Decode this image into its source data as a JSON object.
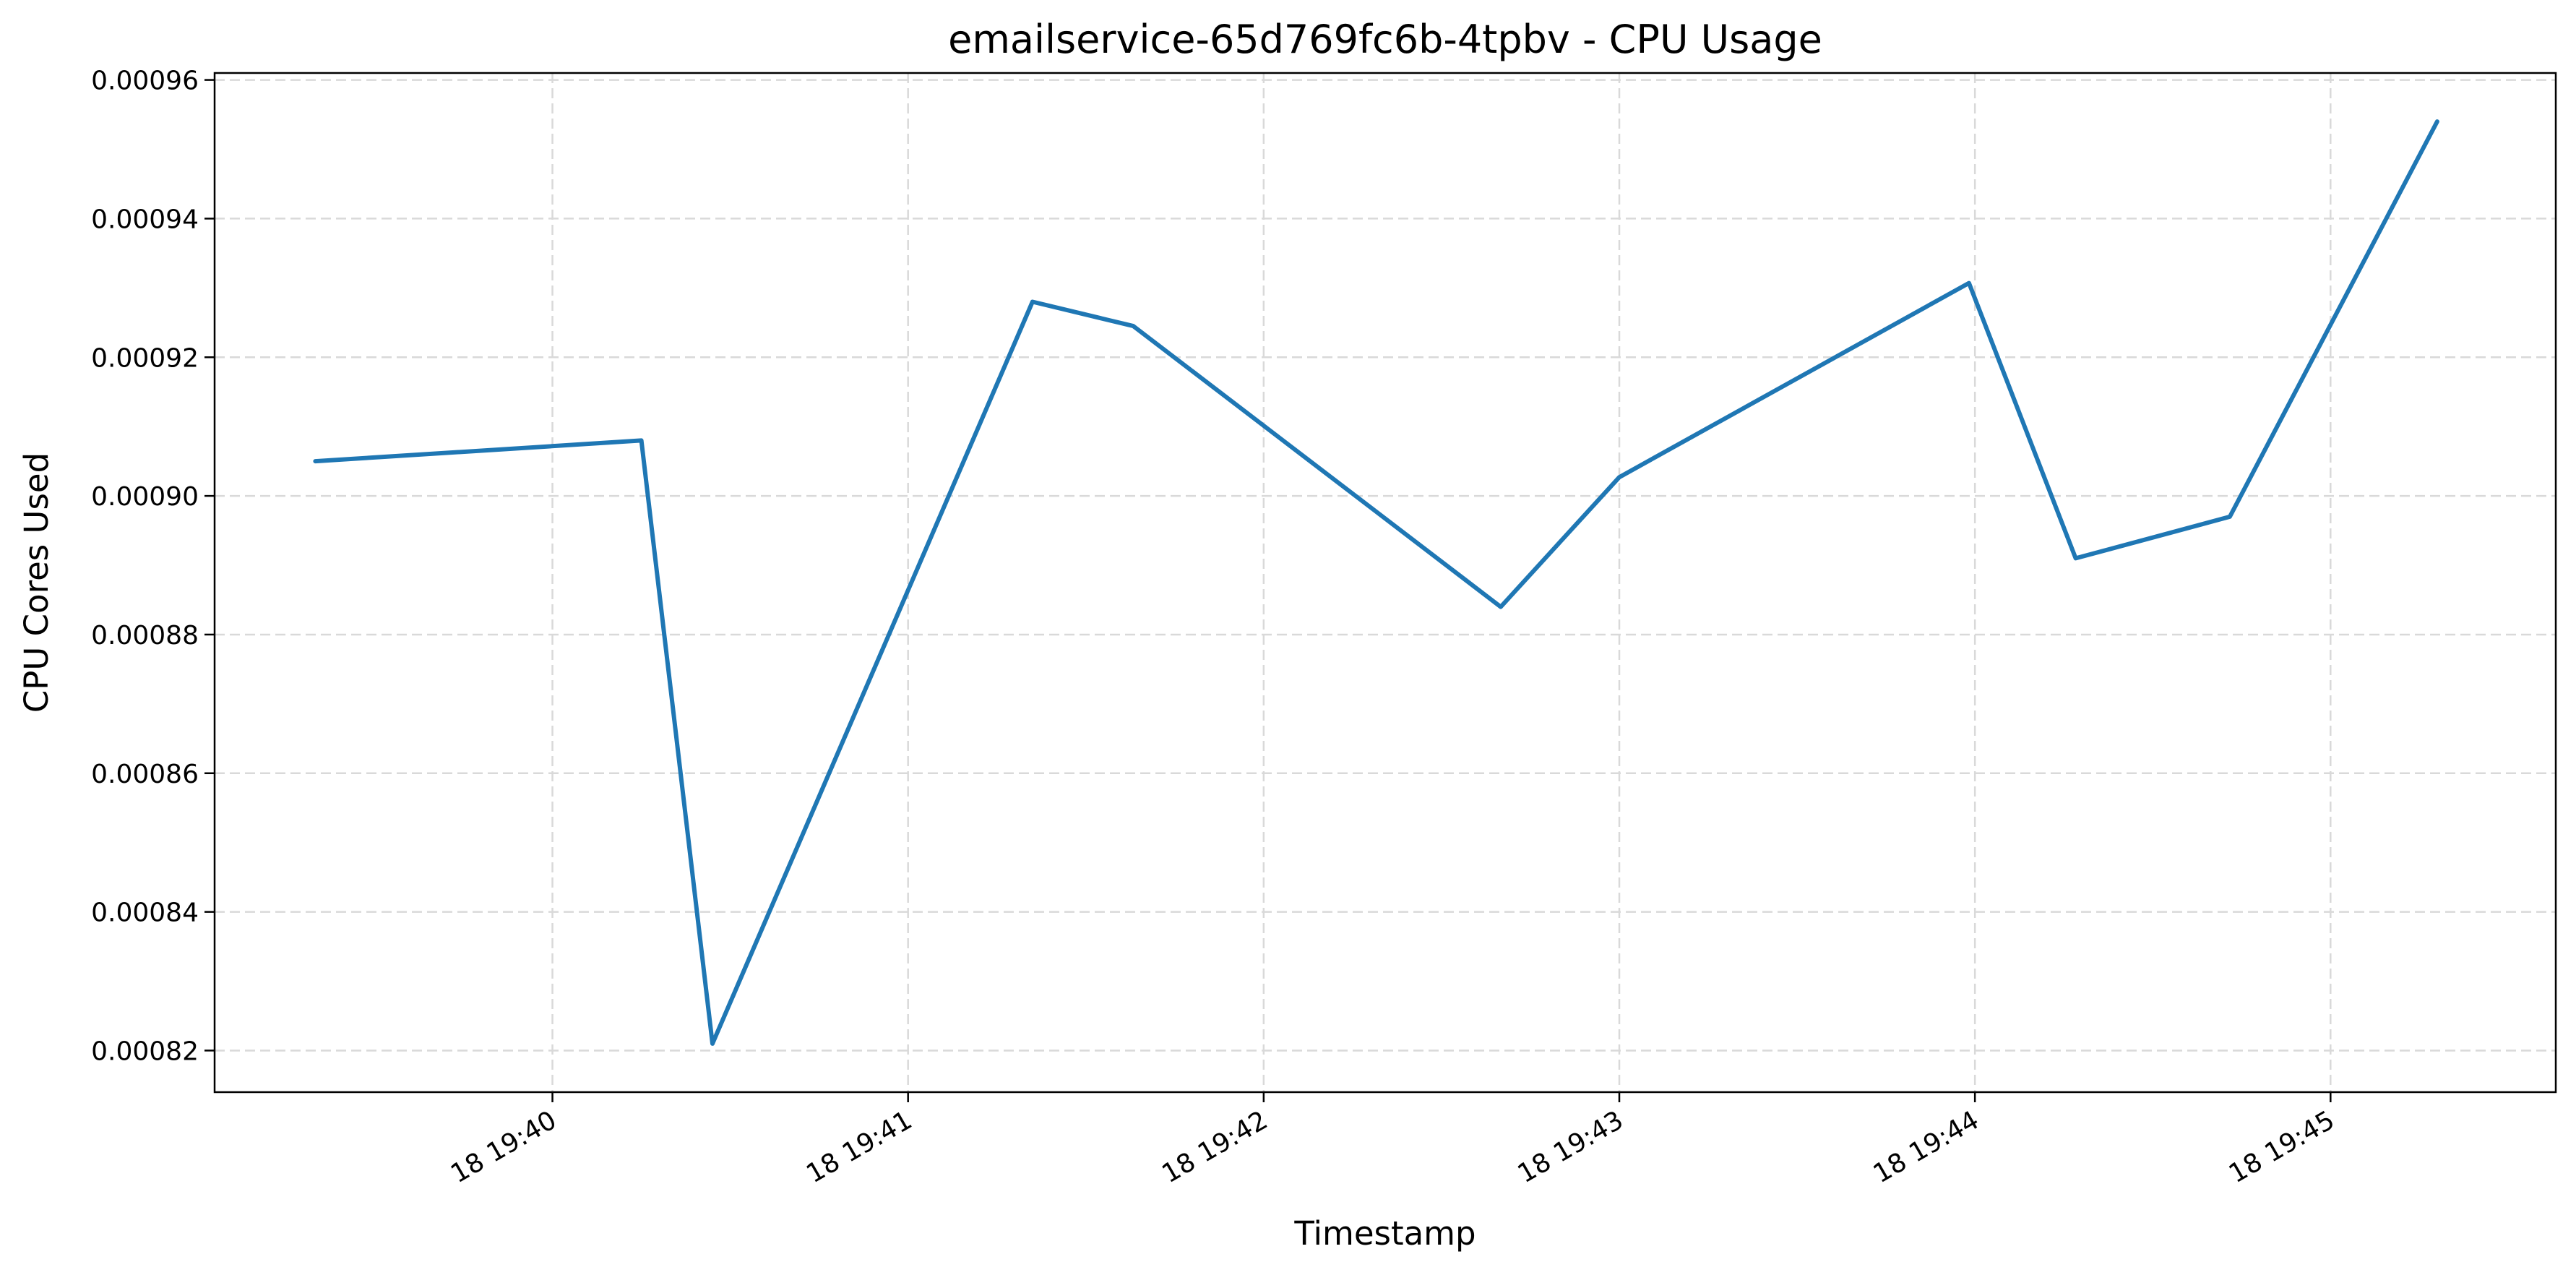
{
  "chart_data": {
    "type": "line",
    "title": "emailservice-65d769fc6b-4tpbv - CPU Usage",
    "xlabel": "Timestamp",
    "ylabel": "CPU Cores Used",
    "x_tick_labels": [
      "18 19:40",
      "18 19:41",
      "18 19:42",
      "18 19:43",
      "18 19:44",
      "18 19:45"
    ],
    "y_tick_labels": [
      "0.00082",
      "0.00084",
      "0.00086",
      "0.00088",
      "0.00090",
      "0.00092",
      "0.00094",
      "0.00096"
    ],
    "ylim": [
      0.000814,
      0.000961
    ],
    "xlim": [
      "19:39:03",
      "19:45:38"
    ],
    "grid": true,
    "series": [
      {
        "color": "#1f77b4",
        "x": [
          "19:39:20",
          "19:40:15",
          "19:40:27",
          "19:41:21",
          "19:41:38",
          "19:42:40",
          "19:43:00",
          "19:43:59",
          "19:44:17",
          "19:44:43",
          "19:45:18"
        ],
        "y": [
          0.000905,
          0.000908,
          0.000821,
          0.000928,
          0.0009245,
          0.000884,
          0.0009027,
          0.0009307,
          0.000891,
          0.000897,
          0.000954
        ]
      }
    ]
  }
}
